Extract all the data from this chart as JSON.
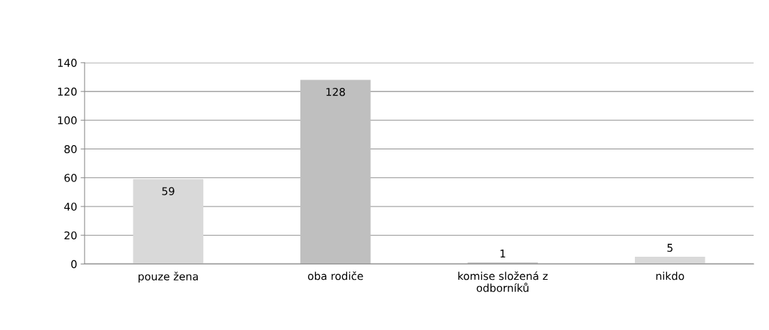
{
  "chart_data": {
    "type": "bar",
    "categories": [
      "pouze žena",
      "oba rodiče",
      "komise složená z\nodborníků",
      "nikdo"
    ],
    "values": [
      59,
      128,
      1,
      5
    ],
    "colors": [
      "#d9d9d9",
      "#bfbfbf",
      "#bfbfbf",
      "#d9d9d9"
    ],
    "ylim": [
      0,
      140
    ],
    "yticks": [
      0,
      20,
      40,
      60,
      80,
      100,
      120,
      140
    ],
    "grid": "y",
    "data_labels": true
  }
}
